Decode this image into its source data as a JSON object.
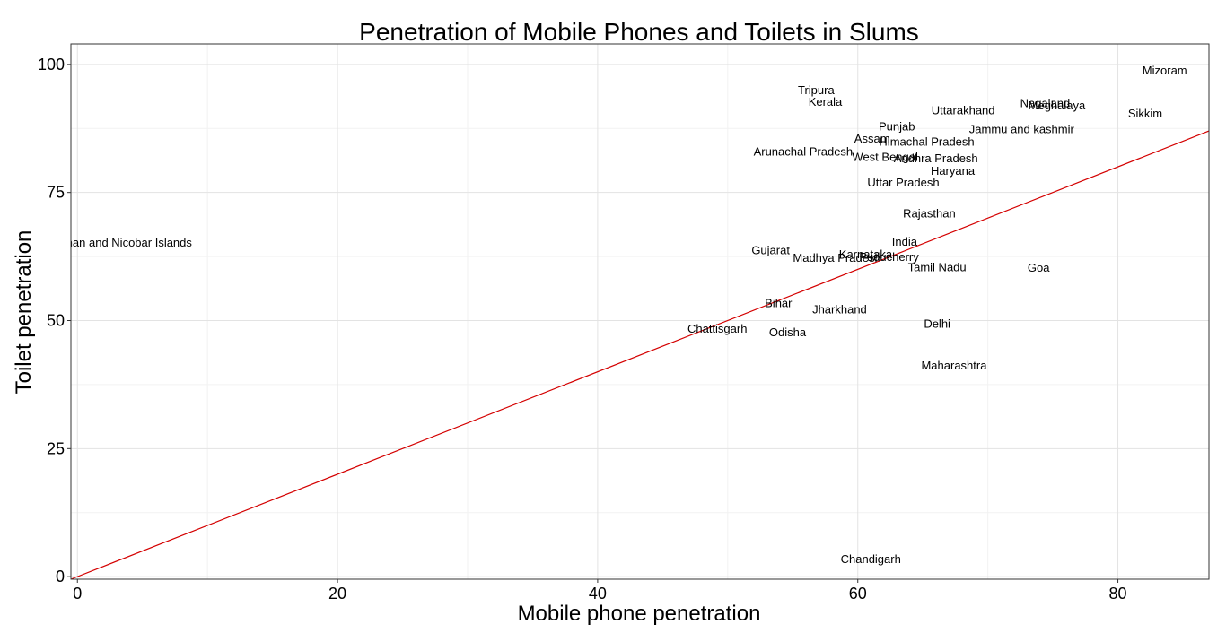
{
  "chart_data": {
    "type": "scatter",
    "title": "Penetration of Mobile Phones and Toilets in Slums",
    "xlabel": "Mobile phone penetration",
    "ylabel": "Toilet penetration",
    "xlim": [
      -0.5,
      87
    ],
    "ylim": [
      -0.5,
      104
    ],
    "x_ticks": [
      0,
      20,
      40,
      60,
      80
    ],
    "y_ticks": [
      0,
      25,
      50,
      75,
      100
    ],
    "grid": true,
    "reference_line": {
      "slope": 1,
      "intercept": 0,
      "color": "#d40000"
    },
    "points": [
      {
        "label": "Mizoram",
        "x": 83.6,
        "y": 98.9
      },
      {
        "label": "Nagaland",
        "x": 74.4,
        "y": 92.5
      },
      {
        "label": "Meghalaya",
        "x": 75.3,
        "y": 92.1
      },
      {
        "label": "Sikkim",
        "x": 82.1,
        "y": 90.5
      },
      {
        "label": "Tripura",
        "x": 56.8,
        "y": 95.1
      },
      {
        "label": "Kerala",
        "x": 57.5,
        "y": 92.8
      },
      {
        "label": "Uttarakhand",
        "x": 68.1,
        "y": 91.1
      },
      {
        "label": "Punjab",
        "x": 63.0,
        "y": 88.0
      },
      {
        "label": "Jammu and kashmir",
        "x": 72.6,
        "y": 87.5
      },
      {
        "label": "Assam",
        "x": 61.1,
        "y": 85.6
      },
      {
        "label": "Himachal Pradesh",
        "x": 65.3,
        "y": 85.0
      },
      {
        "label": "Arunachal Pradesh",
        "x": 55.8,
        "y": 83.1
      },
      {
        "label": "West Bengal",
        "x": 62.1,
        "y": 82.0
      },
      {
        "label": "Andhra Pradesh",
        "x": 66.0,
        "y": 81.8
      },
      {
        "label": "Haryana",
        "x": 67.3,
        "y": 79.3
      },
      {
        "label": "Uttar Pradesh",
        "x": 63.5,
        "y": 77.0
      },
      {
        "label": "Rajasthan",
        "x": 65.5,
        "y": 71.0
      },
      {
        "label": "Andaman and Nicobar Islands",
        "x": 2.8,
        "y": 65.3
      },
      {
        "label": "India",
        "x": 63.6,
        "y": 65.5
      },
      {
        "label": "Gujarat",
        "x": 53.3,
        "y": 63.8
      },
      {
        "label": "Karnataka",
        "x": 60.6,
        "y": 63.0
      },
      {
        "label": "Puducherry",
        "x": 62.4,
        "y": 62.5
      },
      {
        "label": "Madhya Pradesh",
        "x": 58.4,
        "y": 62.3
      },
      {
        "label": "Tamil Nadu",
        "x": 66.1,
        "y": 60.5
      },
      {
        "label": "Goa",
        "x": 73.9,
        "y": 60.4
      },
      {
        "label": "Bihar",
        "x": 53.9,
        "y": 53.5
      },
      {
        "label": "Jharkhand",
        "x": 58.6,
        "y": 52.3
      },
      {
        "label": "Delhi",
        "x": 66.1,
        "y": 49.5
      },
      {
        "label": "Chattisgarh",
        "x": 49.2,
        "y": 48.5
      },
      {
        "label": "Odisha",
        "x": 54.6,
        "y": 47.8
      },
      {
        "label": "Maharashtra",
        "x": 67.4,
        "y": 41.3
      },
      {
        "label": "Chandigarh",
        "x": 61.0,
        "y": 3.5
      }
    ]
  }
}
